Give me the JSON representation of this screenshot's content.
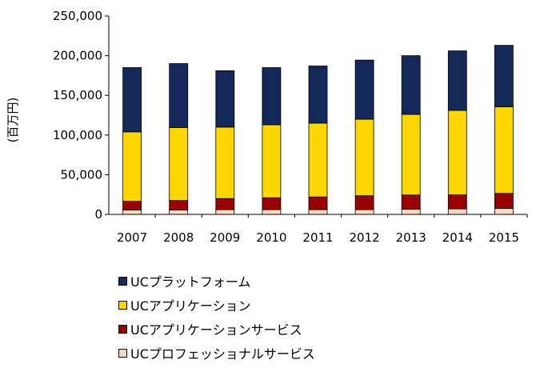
{
  "chart_data": {
    "type": "bar",
    "stacked": true,
    "categories": [
      "2007",
      "2008",
      "2009",
      "2010",
      "2011",
      "2012",
      "2013",
      "2014",
      "2015"
    ],
    "series": [
      {
        "name": "UCプロフェッショナルサービス",
        "color": "#f5d9c0",
        "values": [
          5500,
          5500,
          6000,
          6000,
          6000,
          6000,
          6500,
          7000,
          7500
        ]
      },
      {
        "name": "UCアプリケーションサービス",
        "color": "#9a0000",
        "values": [
          11000,
          12000,
          14000,
          15000,
          16000,
          17500,
          18000,
          17500,
          19000
        ]
      },
      {
        "name": "UCアプリケーション",
        "color": "#ffd700",
        "values": [
          87500,
          92000,
          90000,
          92000,
          93000,
          96500,
          101500,
          106500,
          109000
        ]
      },
      {
        "name": "UCプラットフォーム",
        "color": "#14285a",
        "values": [
          81000,
          80500,
          71000,
          72000,
          72000,
          74500,
          74000,
          75000,
          77500
        ]
      }
    ],
    "ylabel": "(百万円)",
    "ylim": [
      0,
      250000
    ],
    "yticks": [
      "0",
      "50,000",
      "100,000",
      "150,000",
      "200,000",
      "250,000"
    ],
    "grid": false,
    "legend_position": "bottom",
    "legend_order": [
      "UCプラットフォーム",
      "UCアプリケーション",
      "UCアプリケーションサービス",
      "UCプロフェッショナルサービス"
    ]
  }
}
